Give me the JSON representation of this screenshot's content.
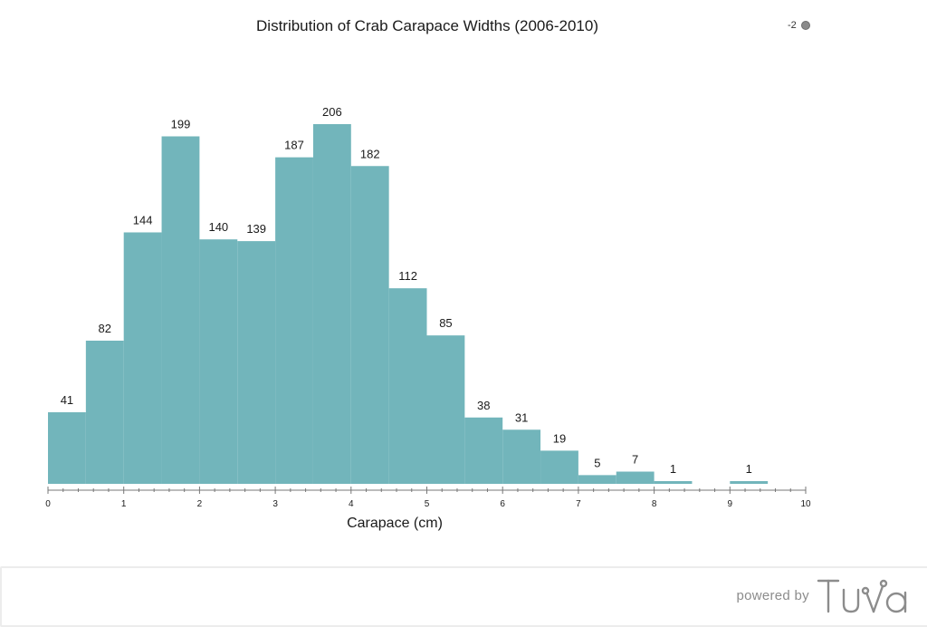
{
  "chart_data": {
    "type": "bar",
    "subtype": "histogram",
    "title": "Distribution of Crab Carapace Widths (2006-2010)",
    "xlabel": "Carapace (cm)",
    "ylabel": "",
    "bin_width": 0.5,
    "bins": [
      {
        "start": 0.0,
        "end": 0.5,
        "count": 41
      },
      {
        "start": 0.5,
        "end": 1.0,
        "count": 82
      },
      {
        "start": 1.0,
        "end": 1.5,
        "count": 144
      },
      {
        "start": 1.5,
        "end": 2.0,
        "count": 199
      },
      {
        "start": 2.0,
        "end": 2.5,
        "count": 140
      },
      {
        "start": 2.5,
        "end": 3.0,
        "count": 139
      },
      {
        "start": 3.0,
        "end": 3.5,
        "count": 187
      },
      {
        "start": 3.5,
        "end": 4.0,
        "count": 206
      },
      {
        "start": 4.0,
        "end": 4.5,
        "count": 182
      },
      {
        "start": 4.5,
        "end": 5.0,
        "count": 112
      },
      {
        "start": 5.0,
        "end": 5.5,
        "count": 85
      },
      {
        "start": 5.5,
        "end": 6.0,
        "count": 38
      },
      {
        "start": 6.0,
        "end": 6.5,
        "count": 31
      },
      {
        "start": 6.5,
        "end": 7.0,
        "count": 19
      },
      {
        "start": 7.0,
        "end": 7.5,
        "count": 5
      },
      {
        "start": 7.5,
        "end": 8.0,
        "count": 7
      },
      {
        "start": 8.0,
        "end": 8.5,
        "count": 1
      },
      {
        "start": 9.0,
        "end": 9.5,
        "count": 1
      }
    ],
    "xlim": [
      0,
      10
    ],
    "ylim": [
      0,
      206
    ],
    "x_ticks": [
      "0",
      "1",
      "2",
      "3",
      "4",
      "5",
      "6",
      "7",
      "8",
      "9",
      "10"
    ],
    "minor_tick_step": 0.2,
    "grid": false,
    "bar_color": "#72b5bb",
    "legend": {
      "label": "-2",
      "placement": "top-right",
      "color": "#8a8a8a"
    }
  },
  "footer": {
    "powered_by": "powered by",
    "brand": "Tuva"
  }
}
